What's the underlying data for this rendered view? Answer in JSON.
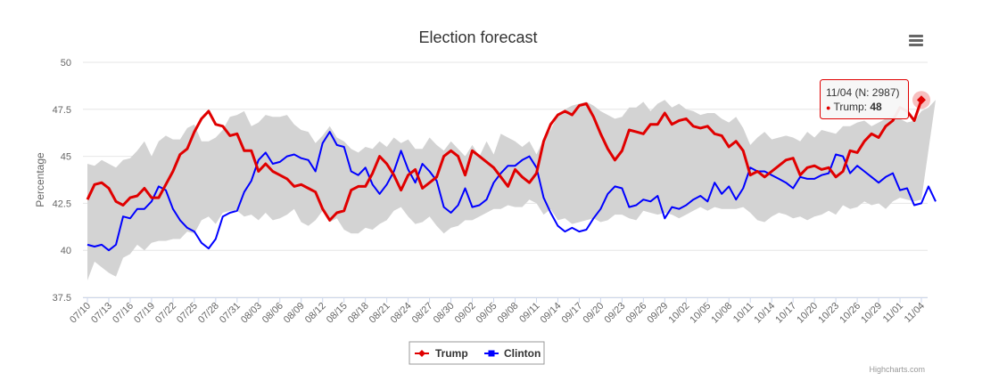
{
  "chart_data": {
    "type": "line",
    "title": "Election forecast",
    "ylabel": "Percentage",
    "xlabel": "",
    "ylim": [
      37.5,
      50
    ],
    "yticks": [
      "37.5",
      "40",
      "42.5",
      "45",
      "47.5",
      "50"
    ],
    "xtick_labels": [
      "07/10",
      "07/13",
      "07/16",
      "07/19",
      "07/22",
      "07/25",
      "07/28",
      "07/31",
      "08/03",
      "08/06",
      "08/09",
      "08/12",
      "08/15",
      "08/18",
      "08/21",
      "08/24",
      "08/27",
      "08/30",
      "09/02",
      "09/05",
      "09/08",
      "09/11",
      "09/14",
      "09/17",
      "09/20",
      "09/23",
      "09/26",
      "09/29",
      "10/02",
      "10/05",
      "10/08",
      "10/11",
      "10/14",
      "10/17",
      "10/20",
      "10/23",
      "10/26",
      "10/29",
      "11/01",
      "11/04"
    ],
    "series": [
      {
        "name": "Trump",
        "color": "#e00000",
        "values": [
          42.7,
          43.5,
          43.6,
          43.3,
          42.6,
          42.4,
          42.8,
          42.9,
          43.3,
          42.8,
          42.8,
          43.5,
          44.2,
          45.1,
          45.4,
          46.3,
          47.0,
          47.4,
          46.7,
          46.6,
          46.1,
          46.2,
          45.3,
          45.3,
          44.2,
          44.6,
          44.2,
          44.0,
          43.8,
          43.4,
          43.5,
          43.3,
          43.1,
          42.2,
          41.6,
          42.0,
          42.1,
          43.2,
          43.4,
          43.4,
          44.1,
          45.0,
          44.6,
          44.0,
          43.2,
          44.0,
          44.3,
          43.3,
          43.6,
          43.9,
          45.0,
          45.3,
          45.0,
          44.0,
          45.3,
          45.0,
          44.7,
          44.4,
          43.9,
          43.4,
          44.3,
          43.9,
          43.6,
          44.1,
          45.8,
          46.7,
          47.2,
          47.4,
          47.2,
          47.7,
          47.8,
          47.1,
          46.2,
          45.4,
          44.8,
          45.3,
          46.4,
          46.3,
          46.2,
          46.7,
          46.7,
          47.3,
          46.7,
          46.9,
          47.0,
          46.6,
          46.5,
          46.6,
          46.2,
          46.1,
          45.5,
          45.8,
          45.3,
          44.0,
          44.2,
          43.9,
          44.2,
          44.5,
          44.8,
          44.9,
          44.0,
          44.4,
          44.5,
          44.3,
          44.4,
          43.9,
          44.2,
          45.3,
          45.2,
          45.8,
          46.2,
          46.0,
          46.6,
          46.9,
          47.6,
          47.4,
          46.9,
          48.0
        ],
        "marker": "diamond"
      },
      {
        "name": "Clinton",
        "color": "#0000ff",
        "values": [
          40.3,
          40.2,
          40.3,
          40.0,
          40.3,
          41.8,
          41.7,
          42.2,
          42.2,
          42.6,
          43.4,
          43.2,
          42.2,
          41.6,
          41.2,
          41.0,
          40.4,
          40.1,
          40.6,
          41.8,
          42.0,
          42.1,
          43.1,
          43.7,
          44.8,
          45.2,
          44.6,
          44.7,
          45.0,
          45.1,
          44.9,
          44.8,
          44.2,
          45.7,
          46.3,
          45.6,
          45.5,
          44.2,
          44.0,
          44.4,
          43.5,
          43.0,
          43.5,
          44.2,
          45.3,
          44.3,
          43.6,
          44.6,
          44.2,
          43.7,
          42.3,
          42.0,
          42.4,
          43.3,
          42.3,
          42.4,
          42.7,
          43.6,
          44.1,
          44.5,
          44.5,
          44.8,
          45.0,
          44.4,
          42.8,
          42.0,
          41.3,
          41.0,
          41.2,
          41.0,
          41.1,
          41.7,
          42.2,
          43.0,
          43.4,
          43.3,
          42.3,
          42.4,
          42.7,
          42.6,
          42.9,
          41.7,
          42.3,
          42.2,
          42.4,
          42.7,
          42.9,
          42.6,
          43.6,
          43.0,
          43.4,
          42.7,
          43.3,
          44.4,
          44.2,
          44.2,
          44.0,
          43.8,
          43.6,
          43.3,
          43.9,
          43.8,
          43.8,
          44.0,
          44.1,
          45.1,
          45.0,
          44.1,
          44.5,
          44.2,
          43.9,
          43.6,
          43.9,
          44.1,
          43.2,
          43.3,
          42.4,
          42.5,
          43.4,
          42.6
        ],
        "marker": "square"
      },
      {
        "name": "range",
        "color": "#d3d3d3",
        "upper": [
          44.6,
          44.5,
          44.8,
          44.6,
          44.4,
          44.8,
          44.9,
          45.3,
          45.8,
          45.0,
          45.8,
          46.1,
          45.9,
          45.9,
          46.5,
          46.7,
          45.8,
          45.8,
          46.0,
          46.4,
          47.1,
          47.2,
          47.4,
          46.6,
          46.8,
          47.2,
          47.1,
          47.1,
          47.2,
          46.7,
          46.4,
          46.3,
          45.7,
          46.1,
          46.6,
          46.0,
          45.8,
          45.4,
          45.2,
          45.5,
          45.4,
          45.8,
          45.5,
          46.0,
          45.7,
          45.9,
          45.4,
          45.4,
          46.0,
          45.6,
          45.3,
          45.8,
          45.4,
          45.0,
          45.6,
          45.0,
          45.8,
          45.1,
          46.2,
          46.0,
          45.8,
          45.5,
          45.8,
          45.1,
          45.9,
          46.4,
          47.2,
          47.5,
          47.7,
          47.8,
          47.9,
          47.7,
          47.4,
          47.2,
          47.0,
          47.1,
          47.6,
          47.6,
          47.9,
          47.4,
          47.8,
          48.0,
          47.6,
          47.8,
          47.5,
          47.4,
          47.2,
          47.3,
          47.3,
          47.0,
          46.8,
          47.1,
          46.5,
          45.6,
          46.0,
          46.3,
          45.9,
          46.0,
          46.1,
          46.0,
          45.8,
          46.3,
          46.0,
          46.4,
          46.3,
          46.2,
          46.6,
          46.6,
          46.8,
          46.9,
          46.6,
          46.8,
          47.0,
          47.2,
          47.0,
          46.8,
          46.9,
          47.4,
          47.6,
          48.0
        ],
        "lower": [
          38.4,
          39.4,
          39.1,
          38.8,
          38.6,
          39.6,
          39.8,
          40.3,
          40.0,
          40.4,
          40.5,
          40.5,
          40.6,
          40.6,
          41.0,
          40.9,
          41.6,
          41.8,
          41.4,
          42.0,
          42.1,
          42.1,
          41.8,
          41.9,
          41.6,
          42.0,
          41.6,
          41.7,
          41.9,
          42.2,
          41.5,
          41.3,
          41.6,
          42.1,
          41.5,
          41.7,
          41.1,
          40.9,
          40.9,
          41.2,
          41.1,
          41.4,
          41.6,
          42.1,
          42.3,
          41.8,
          41.4,
          41.5,
          41.8,
          41.3,
          40.9,
          41.2,
          41.3,
          41.6,
          41.6,
          41.8,
          42.0,
          42.2,
          42.2,
          42.4,
          42.3,
          42.3,
          42.7,
          42.5,
          41.9,
          42.2,
          41.6,
          41.7,
          41.4,
          41.5,
          41.6,
          41.7,
          41.5,
          41.6,
          41.9,
          41.9,
          41.7,
          41.6,
          42.1,
          42.0,
          41.9,
          42.0,
          41.9,
          41.7,
          41.9,
          42.1,
          42.3,
          42.1,
          42.3,
          42.2,
          42.2,
          42.2,
          42.3,
          42.0,
          41.6,
          41.5,
          41.8,
          42.0,
          41.9,
          41.7,
          41.8,
          41.6,
          41.8,
          41.9,
          42.1,
          41.9,
          42.4,
          42.2,
          42.3,
          42.6,
          42.4,
          42.5,
          42.2,
          42.6,
          42.8,
          42.7,
          42.6,
          42.7,
          42.4,
          42.5
        ]
      }
    ],
    "grid": true,
    "legend": "bottom-center",
    "tooltip": {
      "header": "11/04 (N: 2987)",
      "series_label": "Trump: ",
      "value": "48",
      "bullet": "●"
    },
    "credits": "Highcharts.com",
    "menu_icon": "hamburger-menu-icon"
  }
}
